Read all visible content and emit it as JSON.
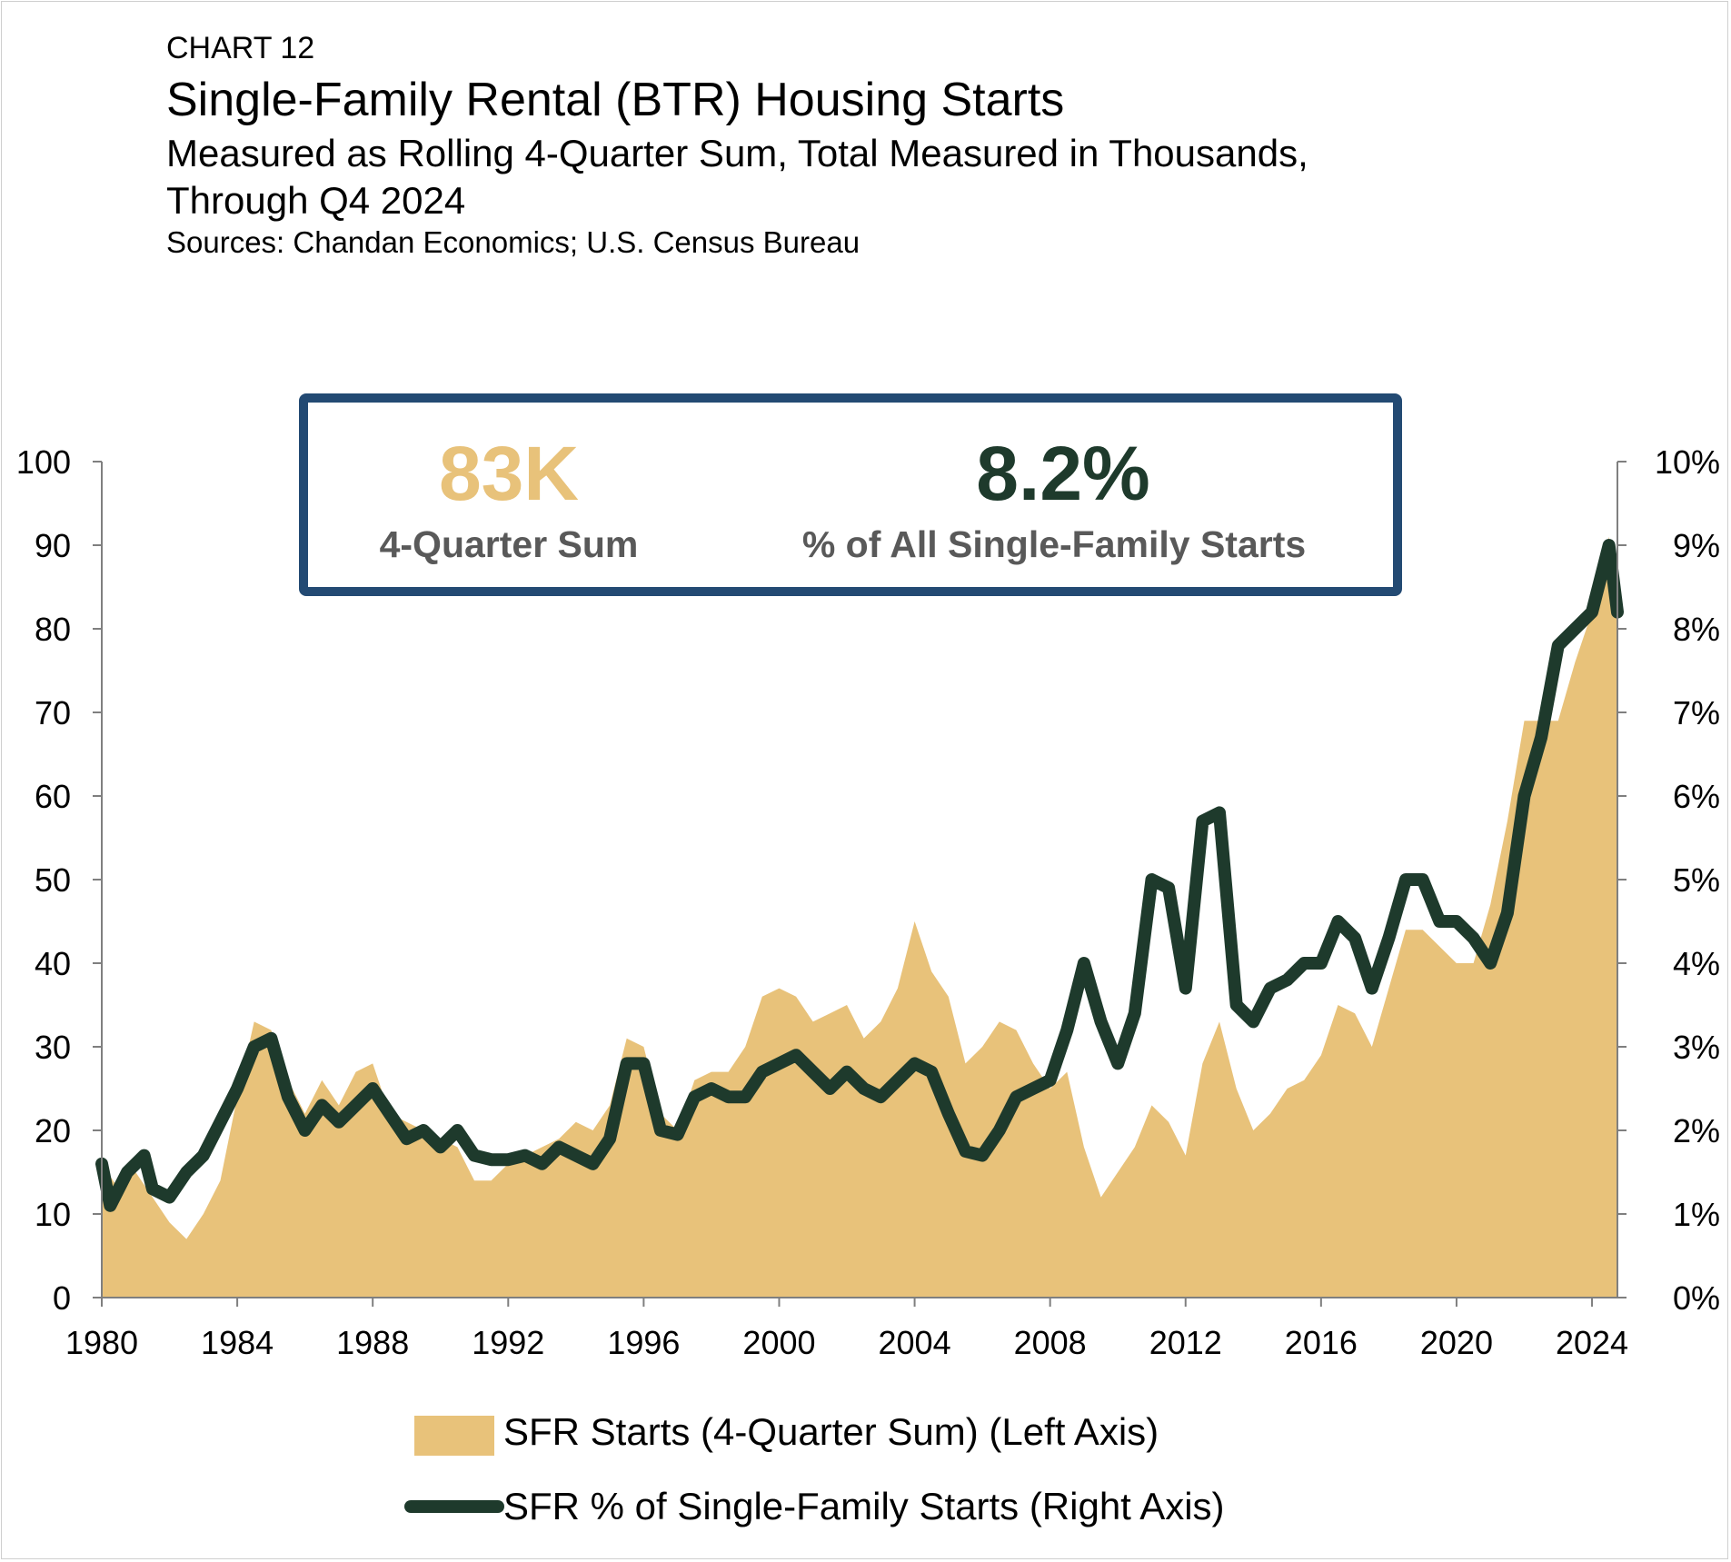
{
  "header": {
    "kicker": "CHART 12",
    "title": "Single-Family Rental (BTR) Housing Starts",
    "subtitle_line1": "Measured as Rolling 4-Quarter Sum, Total Measured in Thousands,",
    "subtitle_line2": "Through Q4 2024",
    "sources": "Sources: Chandan Economics; U.S. Census Bureau"
  },
  "callout": {
    "left_value": "83K",
    "left_label": "4-Quarter Sum",
    "right_value": "8.2%",
    "right_label": "% of All Single-Family Starts",
    "left_color": "#E8C27A",
    "right_color": "#1E3A2C",
    "border_color": "#234A73"
  },
  "colors": {
    "area": "#E8C27A",
    "line": "#1E3A2C",
    "axis": "#7f7f7f"
  },
  "chart_data": {
    "type": "area",
    "x_label_ticks": [
      "1980",
      "1984",
      "1988",
      "1992",
      "1996",
      "2000",
      "2004",
      "2008",
      "2012",
      "2016",
      "2020",
      "2024"
    ],
    "x_range": [
      1980,
      2024.75
    ],
    "left_ticks": [
      "0",
      "10",
      "20",
      "30",
      "40",
      "50",
      "60",
      "70",
      "80",
      "90",
      "100"
    ],
    "right_ticks": [
      "0%",
      "1%",
      "2%",
      "3%",
      "4%",
      "5%",
      "6%",
      "7%",
      "8%",
      "9%",
      "10%"
    ],
    "ylim_left": [
      0,
      100
    ],
    "ylim_right": [
      0,
      10
    ],
    "series": [
      {
        "name": "SFR Starts (4-Quarter Sum) (Left Axis)",
        "axis": "left",
        "type": "area",
        "points": [
          [
            1980,
            16
          ],
          [
            1980.5,
            13
          ],
          [
            1981,
            15
          ],
          [
            1981.5,
            12
          ],
          [
            1982,
            9
          ],
          [
            1982.5,
            7
          ],
          [
            1983,
            10
          ],
          [
            1983.5,
            14
          ],
          [
            1984,
            24
          ],
          [
            1984.5,
            33
          ],
          [
            1985,
            32
          ],
          [
            1985.5,
            26
          ],
          [
            1986,
            22
          ],
          [
            1986.5,
            26
          ],
          [
            1987,
            23
          ],
          [
            1987.5,
            27
          ],
          [
            1988,
            28
          ],
          [
            1988.5,
            22
          ],
          [
            1989,
            21
          ],
          [
            1989.5,
            20
          ],
          [
            1990,
            19
          ],
          [
            1990.5,
            18
          ],
          [
            1991,
            14
          ],
          [
            1991.5,
            14
          ],
          [
            1992,
            16
          ],
          [
            1992.5,
            17
          ],
          [
            1993,
            18
          ],
          [
            1993.5,
            19
          ],
          [
            1994,
            21
          ],
          [
            1994.5,
            20
          ],
          [
            1995,
            23
          ],
          [
            1995.5,
            31
          ],
          [
            1996,
            30
          ],
          [
            1996.5,
            22
          ],
          [
            1997,
            20
          ],
          [
            1997.5,
            26
          ],
          [
            1998,
            27
          ],
          [
            1998.5,
            27
          ],
          [
            1999,
            30
          ],
          [
            1999.5,
            36
          ],
          [
            2000,
            37
          ],
          [
            2000.5,
            36
          ],
          [
            2001,
            33
          ],
          [
            2001.5,
            34
          ],
          [
            2002,
            35
          ],
          [
            2002.5,
            31
          ],
          [
            2003,
            33
          ],
          [
            2003.5,
            37
          ],
          [
            2004,
            45
          ],
          [
            2004.5,
            39
          ],
          [
            2005,
            36
          ],
          [
            2005.5,
            28
          ],
          [
            2006,
            30
          ],
          [
            2006.5,
            33
          ],
          [
            2007,
            32
          ],
          [
            2007.5,
            28
          ],
          [
            2008,
            25
          ],
          [
            2008.5,
            27
          ],
          [
            2009,
            18
          ],
          [
            2009.5,
            12
          ],
          [
            2010,
            15
          ],
          [
            2010.5,
            18
          ],
          [
            2011,
            23
          ],
          [
            2011.5,
            21
          ],
          [
            2012,
            17
          ],
          [
            2012.5,
            28
          ],
          [
            2013,
            33
          ],
          [
            2013.5,
            25
          ],
          [
            2014,
            20
          ],
          [
            2014.5,
            22
          ],
          [
            2015,
            25
          ],
          [
            2015.5,
            26
          ],
          [
            2016,
            29
          ],
          [
            2016.5,
            35
          ],
          [
            2017,
            34
          ],
          [
            2017.5,
            30
          ],
          [
            2018,
            37
          ],
          [
            2018.5,
            44
          ],
          [
            2019,
            44
          ],
          [
            2019.5,
            42
          ],
          [
            2020,
            40
          ],
          [
            2020.5,
            40
          ],
          [
            2021,
            47
          ],
          [
            2021.5,
            57
          ],
          [
            2022,
            69
          ],
          [
            2022.5,
            69
          ],
          [
            2023,
            69
          ],
          [
            2023.5,
            76
          ],
          [
            2024,
            82
          ],
          [
            2024.5,
            91
          ],
          [
            2024.75,
            83
          ]
        ]
      },
      {
        "name": "SFR % of Single-Family Starts (Right Axis)",
        "axis": "right",
        "type": "line",
        "points": [
          [
            1980,
            1.6
          ],
          [
            1980.25,
            1.1
          ],
          [
            1980.75,
            1.5
          ],
          [
            1981.25,
            1.7
          ],
          [
            1981.5,
            1.3
          ],
          [
            1982,
            1.2
          ],
          [
            1982.5,
            1.5
          ],
          [
            1983,
            1.7
          ],
          [
            1983.5,
            2.1
          ],
          [
            1984,
            2.5
          ],
          [
            1984.5,
            3.0
          ],
          [
            1985,
            3.1
          ],
          [
            1985.5,
            2.4
          ],
          [
            1986,
            2.0
          ],
          [
            1986.5,
            2.3
          ],
          [
            1987,
            2.1
          ],
          [
            1987.5,
            2.3
          ],
          [
            1988,
            2.5
          ],
          [
            1988.5,
            2.2
          ],
          [
            1989,
            1.9
          ],
          [
            1989.5,
            2.0
          ],
          [
            1990,
            1.8
          ],
          [
            1990.5,
            2.0
          ],
          [
            1991,
            1.7
          ],
          [
            1991.5,
            1.65
          ],
          [
            1992,
            1.65
          ],
          [
            1992.5,
            1.7
          ],
          [
            1993,
            1.6
          ],
          [
            1993.5,
            1.8
          ],
          [
            1994,
            1.7
          ],
          [
            1994.5,
            1.6
          ],
          [
            1995,
            1.9
          ],
          [
            1995.5,
            2.8
          ],
          [
            1996,
            2.8
          ],
          [
            1996.5,
            2.0
          ],
          [
            1997,
            1.95
          ],
          [
            1997.5,
            2.4
          ],
          [
            1998,
            2.5
          ],
          [
            1998.5,
            2.4
          ],
          [
            1999,
            2.4
          ],
          [
            1999.5,
            2.7
          ],
          [
            2000,
            2.8
          ],
          [
            2000.5,
            2.9
          ],
          [
            2001,
            2.7
          ],
          [
            2001.5,
            2.5
          ],
          [
            2002,
            2.7
          ],
          [
            2002.5,
            2.5
          ],
          [
            2003,
            2.4
          ],
          [
            2003.5,
            2.6
          ],
          [
            2004,
            2.8
          ],
          [
            2004.5,
            2.7
          ],
          [
            2005,
            2.2
          ],
          [
            2005.5,
            1.75
          ],
          [
            2006,
            1.7
          ],
          [
            2006.5,
            2.0
          ],
          [
            2007,
            2.4
          ],
          [
            2007.5,
            2.5
          ],
          [
            2008,
            2.6
          ],
          [
            2008.5,
            3.2
          ],
          [
            2009,
            4.0
          ],
          [
            2009.5,
            3.3
          ],
          [
            2010,
            2.8
          ],
          [
            2010.5,
            3.4
          ],
          [
            2011,
            5.0
          ],
          [
            2011.5,
            4.9
          ],
          [
            2012,
            3.7
          ],
          [
            2012.5,
            5.7
          ],
          [
            2013,
            5.8
          ],
          [
            2013.5,
            3.5
          ],
          [
            2014,
            3.3
          ],
          [
            2014.5,
            3.7
          ],
          [
            2015,
            3.8
          ],
          [
            2015.5,
            4.0
          ],
          [
            2016,
            4.0
          ],
          [
            2016.5,
            4.5
          ],
          [
            2017,
            4.3
          ],
          [
            2017.5,
            3.7
          ],
          [
            2018,
            4.3
          ],
          [
            2018.5,
            5.0
          ],
          [
            2019,
            5.0
          ],
          [
            2019.5,
            4.5
          ],
          [
            2020,
            4.5
          ],
          [
            2020.5,
            4.3
          ],
          [
            2021,
            4.0
          ],
          [
            2021.5,
            4.6
          ],
          [
            2022,
            6.0
          ],
          [
            2022.5,
            6.7
          ],
          [
            2023,
            7.8
          ],
          [
            2023.5,
            8.0
          ],
          [
            2024,
            8.2
          ],
          [
            2024.5,
            9.0
          ],
          [
            2024.75,
            8.2
          ]
        ]
      }
    ]
  }
}
